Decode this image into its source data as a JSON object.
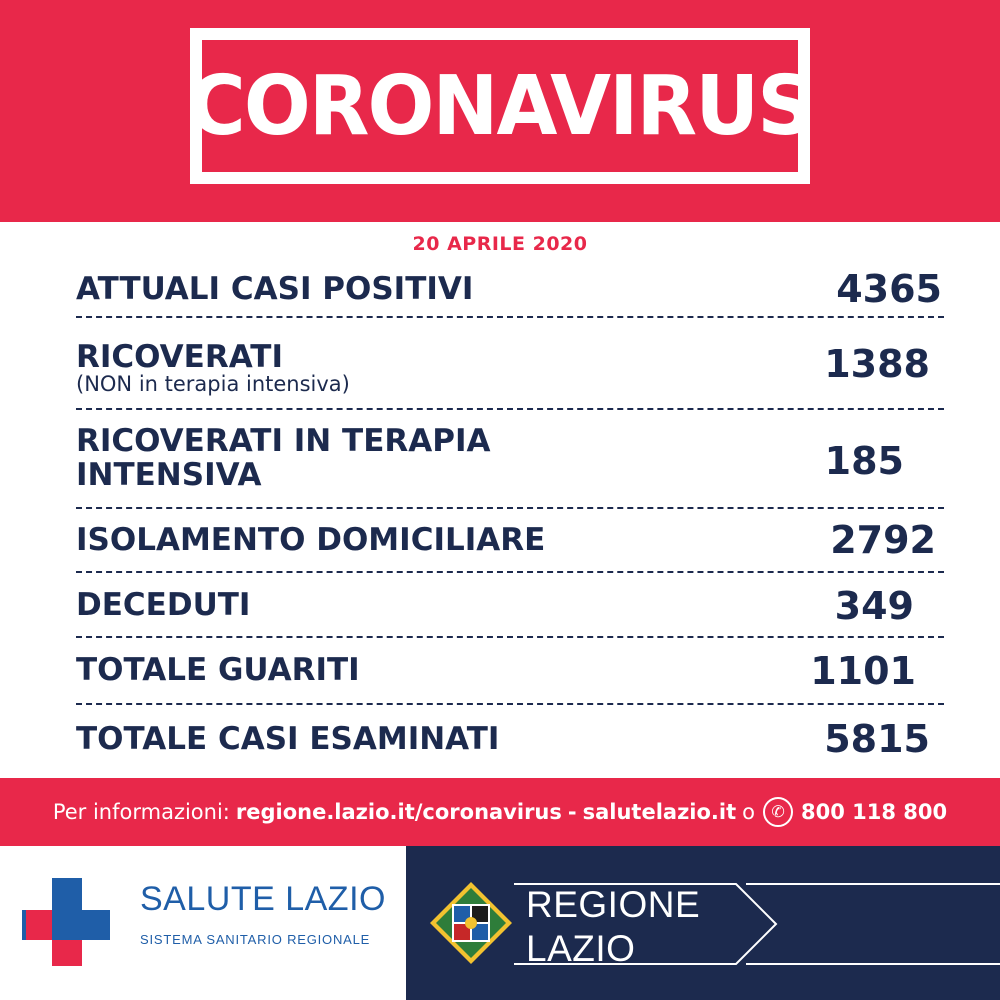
{
  "header": {
    "title": "CORONAVIRUS"
  },
  "date": "20 APRILE 2020",
  "stats": [
    {
      "label": "ATTUALI CASI POSITIVI",
      "value": "4365"
    },
    {
      "label": "RICOVERATI",
      "sub": "(NON in terapia intensiva)",
      "value": "1388"
    },
    {
      "label": "RICOVERATI IN TERAPIA INTENSIVA",
      "value": "185"
    },
    {
      "label": "ISOLAMENTO DOMICILIARE",
      "value": "2792"
    },
    {
      "label": "DECEDUTI",
      "value": "349"
    },
    {
      "label": "TOTALE GUARITI",
      "value": "1101"
    },
    {
      "label": "TOTALE CASI ESAMINATI",
      "value": "5815"
    }
  ],
  "info": {
    "prefix": "Per informazioni:",
    "link1": "regione.lazio.it/coronavirus",
    "dash": "-",
    "link2": "salutelazio.it",
    "or": "o",
    "phone_icon": "phone-icon",
    "phone": "800 118 800"
  },
  "footer": {
    "salute_title": "SALUTE LAZIO",
    "salute_sub": "SISTEMA SANITARIO REGIONALE",
    "regione_line1": "REGIONE",
    "regione_line2": "LAZIO"
  },
  "colors": {
    "brand_red": "#e8284a",
    "navy": "#1c2a4e",
    "salute_blue": "#1f5ea8"
  }
}
